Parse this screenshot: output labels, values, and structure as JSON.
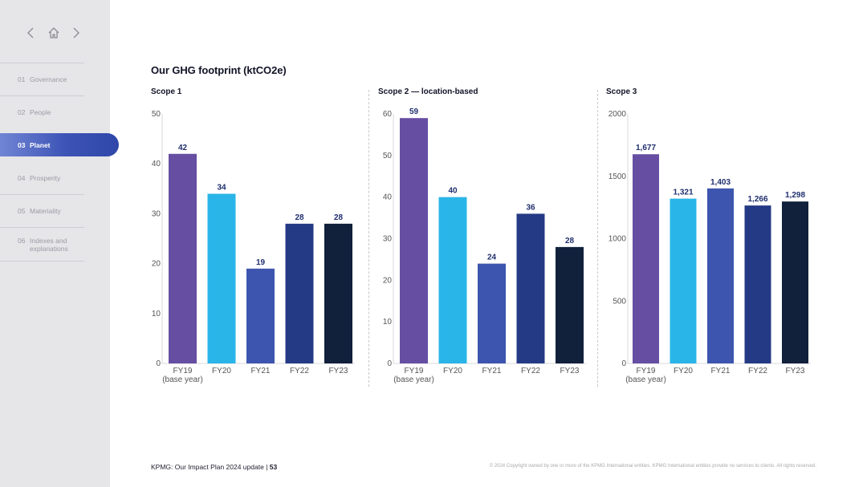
{
  "nav": {
    "back_icon": "chevron-left-icon",
    "home_icon": "home-icon",
    "forward_icon": "chevron-right-icon"
  },
  "menu": [
    {
      "num": "01",
      "label": "Governance"
    },
    {
      "num": "02",
      "label": "People"
    },
    {
      "num": "03",
      "label": "Planet"
    },
    {
      "num": "04",
      "label": "Prosperity"
    },
    {
      "num": "05",
      "label": "Materiality"
    },
    {
      "num": "06",
      "label": "Indexes and",
      "label2": "explanations"
    }
  ],
  "page_title": "Our GHG footprint (ktCO2e)",
  "colors": {
    "fy19": "#664ea2",
    "fy20": "#29b5e8",
    "fy21": "#3d55ae",
    "fy22": "#253a85",
    "fy23": "#11203b",
    "label": "#1f2f6e",
    "axis": "#555555"
  },
  "chart_data": [
    {
      "type": "bar",
      "title": "Scope 1",
      "categories": [
        "FY19",
        "FY20",
        "FY21",
        "FY22",
        "FY23"
      ],
      "category_sublabels": [
        "(base year)",
        "",
        "",
        "",
        ""
      ],
      "values": [
        42,
        34,
        19,
        28,
        28
      ],
      "value_labels": [
        "42",
        "34",
        "19",
        "28",
        "28"
      ],
      "ylim": [
        0,
        50
      ],
      "yticks": [
        0,
        10,
        20,
        30,
        40,
        50
      ],
      "ytick_labels": [
        "0",
        "10",
        "20",
        "30",
        "40",
        "50"
      ]
    },
    {
      "type": "bar",
      "title": "Scope 2 — location-based",
      "categories": [
        "FY19",
        "FY20",
        "FY21",
        "FY22",
        "FY23"
      ],
      "category_sublabels": [
        "(base year)",
        "",
        "",
        "",
        ""
      ],
      "values": [
        59,
        40,
        24,
        36,
        28
      ],
      "value_labels": [
        "59",
        "40",
        "24",
        "36",
        "28"
      ],
      "ylim": [
        0,
        60
      ],
      "yticks": [
        0,
        10,
        20,
        30,
        40,
        50,
        60
      ],
      "ytick_labels": [
        "0",
        "10",
        "20",
        "30",
        "40",
        "50",
        "60"
      ]
    },
    {
      "type": "bar",
      "title": "Scope 3",
      "categories": [
        "FY19",
        "FY20",
        "FY21",
        "FY22",
        "FY23"
      ],
      "category_sublabels": [
        "(base year)",
        "",
        "",
        "",
        ""
      ],
      "values": [
        1677,
        1321,
        1403,
        1266,
        1298
      ],
      "value_labels": [
        "1,677",
        "1,321",
        "1,403",
        "1,266",
        "1,298"
      ],
      "ylim": [
        0,
        2000
      ],
      "yticks": [
        0,
        500,
        1000,
        1500,
        2000
      ],
      "ytick_labels": [
        "0",
        "500",
        "1000",
        "1500",
        "2000"
      ]
    }
  ],
  "footer": {
    "left": "KPMG: Our Impact Plan 2024 update",
    "separator": "|",
    "page_number": "53",
    "copyright": "© 2024 Copyright owned by one or more of the KPMG International entities. KPMG International entities provide no services to clients. All rights reserved."
  }
}
